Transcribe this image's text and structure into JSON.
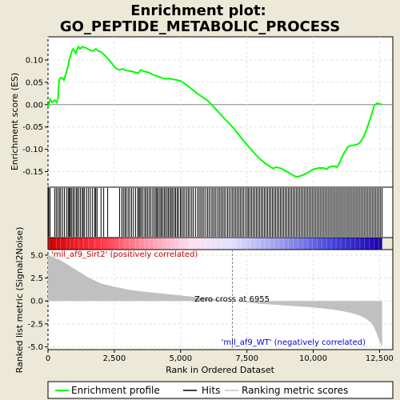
{
  "chart_data": {
    "type": "line",
    "title": [
      "Enrichment plot:",
      "GO_PEPTIDE_METABOLIC_PROCESS"
    ],
    "top_panel": {
      "ylabel": "Enrichment score (ES)",
      "ylim": [
        -0.185,
        0.152
      ],
      "yticks": [
        -0.15,
        -0.1,
        -0.05,
        0.0,
        0.05,
        0.1
      ],
      "ytick_labels": [
        "-0.15",
        "-0.10",
        "-0.05",
        "0.00",
        "0.05",
        "0.10"
      ],
      "grid": true,
      "series": [
        {
          "name": "Enrichment profile",
          "color": "#00ff00",
          "x": [
            0,
            80,
            150,
            250,
            330,
            380,
            420,
            470,
            520,
            600,
            680,
            750,
            800,
            850,
            900,
            950,
            1000,
            1050,
            1100,
            1150,
            1200,
            1300,
            1400,
            1500,
            1600,
            1700,
            1800,
            1900,
            2000,
            2100,
            2200,
            2300,
            2400,
            2500,
            2600,
            2700,
            2800,
            2900,
            3000,
            3200,
            3400,
            3500,
            3600,
            3800,
            4000,
            4200,
            4400,
            4600,
            4800,
            5000,
            5200,
            5400,
            5600,
            5800,
            6000,
            6200,
            6400,
            6600,
            6800,
            7000,
            7200,
            7400,
            7600,
            7800,
            8000,
            8200,
            8400,
            8500,
            8600,
            8800,
            9000,
            9200,
            9300,
            9400,
            9600,
            9800,
            10000,
            10200,
            10400,
            10500,
            10600,
            10700,
            10800,
            10900,
            11000,
            11100,
            11200,
            11300,
            11400,
            11500,
            11600,
            11700,
            11800,
            11900,
            12000,
            12100,
            12200,
            12300,
            12400,
            12500,
            12600
          ],
          "y": [
            -0.005,
            0.012,
            0.005,
            0.01,
            0.005,
            0.015,
            0.055,
            0.06,
            0.06,
            0.055,
            0.07,
            0.085,
            0.1,
            0.11,
            0.12,
            0.125,
            0.12,
            0.115,
            0.125,
            0.13,
            0.125,
            0.13,
            0.128,
            0.125,
            0.122,
            0.12,
            0.125,
            0.12,
            0.118,
            0.113,
            0.107,
            0.1,
            0.093,
            0.085,
            0.08,
            0.078,
            0.08,
            0.078,
            0.076,
            0.074,
            0.07,
            0.078,
            0.075,
            0.072,
            0.066,
            0.062,
            0.058,
            0.058,
            0.056,
            0.053,
            0.045,
            0.036,
            0.026,
            0.018,
            0.01,
            -0.002,
            -0.015,
            -0.028,
            -0.04,
            -0.053,
            -0.068,
            -0.083,
            -0.097,
            -0.11,
            -0.122,
            -0.132,
            -0.14,
            -0.143,
            -0.14,
            -0.143,
            -0.15,
            -0.157,
            -0.16,
            -0.162,
            -0.158,
            -0.152,
            -0.145,
            -0.142,
            -0.142,
            -0.145,
            -0.14,
            -0.138,
            -0.138,
            -0.14,
            -0.13,
            -0.115,
            -0.105,
            -0.095,
            -0.092,
            -0.091,
            -0.09,
            -0.088,
            -0.082,
            -0.072,
            -0.058,
            -0.04,
            -0.022,
            -0.002,
            0.003,
            0.002,
            0.0
          ]
        }
      ]
    },
    "hits": [
      30,
      80,
      250,
      310,
      370,
      430,
      480,
      550,
      620,
      700,
      760,
      800,
      840,
      880,
      940,
      990,
      1060,
      1100,
      1160,
      1220,
      1290,
      1330,
      1380,
      1460,
      1530,
      1600,
      1680,
      1760,
      1800,
      1850,
      2000,
      2100,
      2250,
      2700,
      2780,
      2840,
      2900,
      2950,
      3020,
      3080,
      3150,
      3220,
      3300,
      3380,
      3430,
      3470,
      3520,
      3580,
      3650,
      3700,
      3760,
      3820,
      3880,
      3950,
      4010,
      4070,
      4110,
      4160,
      4220,
      4270,
      4320,
      4380,
      4430,
      4490,
      4540,
      4600,
      4650,
      4700,
      4760,
      4810,
      4870,
      4920,
      4990,
      5040,
      5100,
      5160,
      5230,
      5290,
      5350,
      5420,
      5480,
      5560,
      5640,
      5700,
      5760,
      5820,
      5880,
      5950,
      6020,
      6080,
      6150,
      6210,
      6270,
      6330,
      6400,
      6460,
      6520,
      6580,
      6640,
      6700,
      6770,
      6830,
      6900,
      6960,
      7020,
      7080,
      7140,
      7200,
      7260,
      7320,
      7380,
      7450,
      7510,
      7560,
      7620,
      7680,
      7740,
      7800,
      7860,
      7920,
      7980,
      8040,
      8100,
      8160,
      8220,
      8280,
      8340,
      8400,
      8460,
      8520,
      8580,
      8640,
      8700,
      8760,
      8820,
      8880,
      8940,
      9000,
      9060,
      9120,
      9180,
      9240,
      9300,
      9360,
      9420,
      9480,
      9540,
      9600,
      9660,
      9720,
      9780,
      9840,
      9900,
      9960,
      10020,
      10080,
      10140,
      10200,
      10260,
      10320,
      10380,
      10440,
      10500,
      10560,
      10620,
      10680,
      10740,
      10800,
      10860,
      10920,
      10980,
      11040,
      11100,
      11160,
      11220,
      11280,
      11340,
      11400,
      11460,
      11520,
      11580,
      11640,
      11700,
      11760,
      11820,
      11880,
      11940,
      12000,
      12060,
      12120,
      12180,
      12240,
      12300,
      12360,
      12420,
      12480,
      12540,
      12600
    ],
    "bottom_panel": {
      "ylabel": "Ranked list metric (Signal2Noise)",
      "xlabel": "Rank in Ordered Dataset",
      "xlim": [
        0,
        13000
      ],
      "xticks": [
        0,
        2500,
        5000,
        7500,
        10000,
        12500
      ],
      "xtick_labels": [
        "0",
        "2,500",
        "5,000",
        "7,500",
        "10,000",
        "12,500"
      ],
      "ylim": [
        -5.3,
        5.6
      ],
      "yticks": [
        -5.0,
        -2.5,
        0.0,
        2.5,
        5.0
      ],
      "ytick_labels": [
        "-5.0",
        "-2.5",
        "0.0",
        "2.5",
        "5.0"
      ],
      "grid": true,
      "metric_x": [
        0,
        200,
        500,
        1000,
        1500,
        2000,
        2500,
        3000,
        3500,
        4000,
        4500,
        5000,
        5500,
        6000,
        6500,
        6955,
        7500,
        8000,
        8500,
        9000,
        9500,
        10000,
        10500,
        11000,
        11500,
        11800,
        12000,
        12200,
        12300,
        12400,
        12500,
        12600
      ],
      "metric_y": [
        5.0,
        4.8,
        4.4,
        3.5,
        2.6,
        1.9,
        1.55,
        1.25,
        1.05,
        0.9,
        0.75,
        0.6,
        0.45,
        0.3,
        0.15,
        0.0,
        -0.15,
        -0.3,
        -0.4,
        -0.5,
        -0.6,
        -0.7,
        -0.85,
        -1.05,
        -1.35,
        -1.65,
        -1.95,
        -2.4,
        -2.9,
        -3.6,
        -4.4,
        -5.0
      ],
      "zero_cross_x": 6955,
      "annotations": {
        "positive": "'mll_af9_Sirt2' (positively correlated)",
        "negative": "'mll_af9_WT' (negatively correlated)",
        "zero_cross": "Zero cross at 6955"
      }
    },
    "legend": {
      "placement": "bottom",
      "entries": [
        "Enrichment profile",
        "Hits",
        "Ranking metric scores"
      ]
    },
    "colors": {
      "background": "#ece9d8",
      "profile": "#00ff00",
      "metric_fill": "#c0c0c0",
      "positive_text": "#cc0000",
      "negative_text": "#0000cc",
      "zero_line": "#808080"
    }
  }
}
